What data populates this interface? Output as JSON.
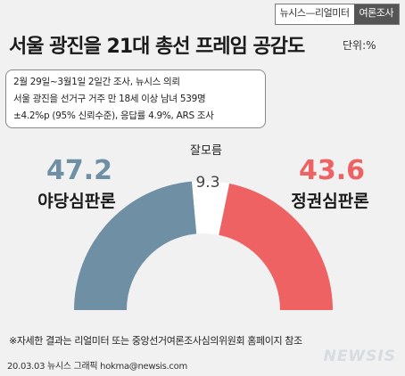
{
  "header": {
    "brand_main": "뉴시스",
    "brand_sub": "리얼미터",
    "brand_tag": "여론조사",
    "title": "서울 광진을 21대 총선 프레임 공감도",
    "unit": "단위:%"
  },
  "note": {
    "lines": [
      "2월 29일~3월1일 2일간 조사, 뉴시스 의뢰",
      "서울 광진을 선거구 거주 만 18세 이상 남녀 539명",
      "±4.2%p (95% 신뢰수준), 응답률 4.9%, ARS 조사"
    ]
  },
  "chart_data": {
    "type": "semicircle-donut",
    "categories": [
      "야당심판론",
      "잘모름",
      "정권심판론"
    ],
    "values": [
      47.2,
      9.3,
      43.6
    ],
    "colors": [
      "#6f8fa5",
      "#ffffff",
      "#ee6264"
    ]
  },
  "footer": {
    "footnote": "※자세한 결과는 리얼미터 또는 중앙선거여론조사심의위원회 홈페이지 참조",
    "source": "20.03.03 뉴시스 그래픽  hokma@newsis.com",
    "logo": "NEWSIS"
  }
}
